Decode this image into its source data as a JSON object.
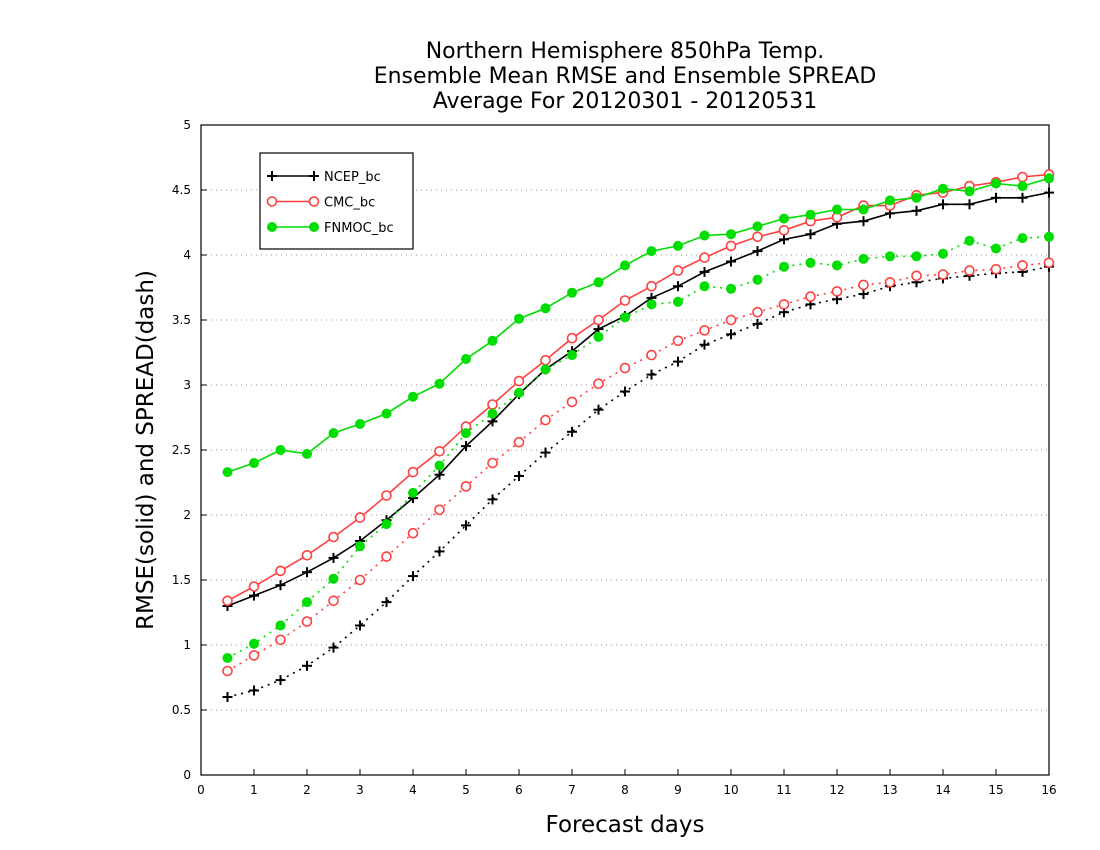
{
  "chart_data": {
    "type": "line",
    "title": [
      "Northern Hemisphere 850hPa Temp.",
      "Ensemble Mean RMSE and Ensemble SPREAD",
      "Average For 20120301 - 20120531"
    ],
    "xlabel": "Forecast days",
    "ylabel": "RMSE(solid) and SPREAD(dash)",
    "xlim": [
      0,
      16
    ],
    "ylim": [
      0,
      5
    ],
    "xticks": [
      "0",
      "1",
      "2",
      "3",
      "4",
      "5",
      "6",
      "7",
      "8",
      "9",
      "10",
      "11",
      "12",
      "13",
      "14",
      "15",
      "16"
    ],
    "yticks": [
      "0",
      "0.5",
      "1",
      "1.5",
      "2",
      "2.5",
      "3",
      "3.5",
      "4",
      "4.5",
      "5"
    ],
    "grid": "horizontal dotted",
    "legend_position": "top-left",
    "x": [
      0.5,
      1,
      1.5,
      2,
      2.5,
      3,
      3.5,
      4,
      4.5,
      5,
      5.5,
      6,
      6.5,
      7,
      7.5,
      8,
      8.5,
      9,
      9.5,
      10,
      10.5,
      11,
      11.5,
      12,
      12.5,
      13,
      13.5,
      14,
      14.5,
      15,
      15.5,
      16
    ],
    "series": [
      {
        "name": "NCEP_bc",
        "color": "#000000",
        "marker": "plus",
        "kind": "rmse",
        "values": [
          1.3,
          1.38,
          1.46,
          1.56,
          1.67,
          1.8,
          1.96,
          2.13,
          2.31,
          2.53,
          2.72,
          2.93,
          3.12,
          3.26,
          3.43,
          3.53,
          3.67,
          3.76,
          3.87,
          3.95,
          4.03,
          4.12,
          4.16,
          4.24,
          4.26,
          4.32,
          4.34,
          4.39,
          4.39,
          4.44,
          4.44,
          4.48
        ]
      },
      {
        "name": "",
        "color": "#000000",
        "marker": "plus",
        "kind": "spread",
        "values": [
          0.6,
          0.65,
          0.73,
          0.84,
          0.98,
          1.15,
          1.33,
          1.53,
          1.72,
          1.92,
          2.12,
          2.3,
          2.48,
          2.64,
          2.81,
          2.95,
          3.08,
          3.18,
          3.31,
          3.39,
          3.47,
          3.56,
          3.62,
          3.66,
          3.7,
          3.76,
          3.79,
          3.82,
          3.84,
          3.86,
          3.87,
          3.91
        ]
      },
      {
        "name": "CMC_bc",
        "color": "#ff4040",
        "marker": "circle",
        "kind": "rmse",
        "values": [
          1.34,
          1.45,
          1.57,
          1.69,
          1.83,
          1.98,
          2.15,
          2.33,
          2.49,
          2.68,
          2.85,
          3.03,
          3.19,
          3.36,
          3.5,
          3.65,
          3.76,
          3.88,
          3.98,
          4.07,
          4.14,
          4.19,
          4.26,
          4.29,
          4.38,
          4.38,
          4.46,
          4.48,
          4.53,
          4.56,
          4.6,
          4.62
        ]
      },
      {
        "name": "",
        "color": "#ff4040",
        "marker": "circle",
        "kind": "spread",
        "values": [
          0.8,
          0.92,
          1.04,
          1.18,
          1.34,
          1.5,
          1.68,
          1.86,
          2.04,
          2.22,
          2.4,
          2.56,
          2.73,
          2.87,
          3.01,
          3.13,
          3.23,
          3.34,
          3.42,
          3.5,
          3.56,
          3.62,
          3.68,
          3.72,
          3.77,
          3.79,
          3.84,
          3.85,
          3.88,
          3.89,
          3.92,
          3.94
        ]
      },
      {
        "name": "FNMOC_bc",
        "color": "#00dd00",
        "marker": "dot",
        "kind": "rmse",
        "values": [
          2.33,
          2.4,
          2.5,
          2.47,
          2.63,
          2.7,
          2.78,
          2.91,
          3.01,
          3.2,
          3.34,
          3.51,
          3.59,
          3.71,
          3.79,
          3.92,
          4.03,
          4.07,
          4.15,
          4.16,
          4.22,
          4.28,
          4.31,
          4.35,
          4.35,
          4.42,
          4.44,
          4.51,
          4.49,
          4.55,
          4.53,
          4.59
        ]
      },
      {
        "name": "",
        "color": "#00dd00",
        "marker": "dot",
        "kind": "spread",
        "values": [
          0.9,
          1.01,
          1.15,
          1.33,
          1.51,
          1.76,
          1.93,
          2.17,
          2.38,
          2.63,
          2.78,
          2.94,
          3.12,
          3.23,
          3.37,
          3.52,
          3.62,
          3.64,
          3.76,
          3.74,
          3.81,
          3.91,
          3.94,
          3.92,
          3.97,
          3.99,
          3.99,
          4.01,
          4.11,
          4.05,
          4.13,
          4.14
        ]
      }
    ]
  }
}
